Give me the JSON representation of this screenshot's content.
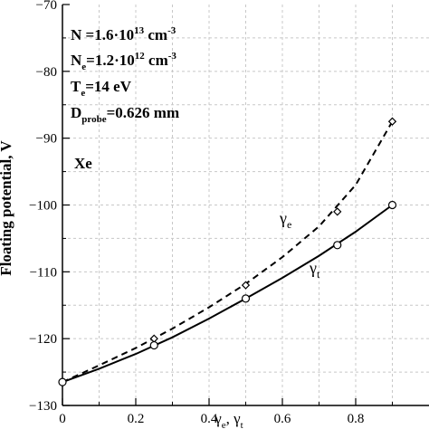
{
  "chart_data": {
    "type": "line",
    "xlabel": {
      "main": "γ",
      "sub1": "e",
      "sep": ", γ",
      "sub2": "t"
    },
    "ylabel": "Floating potential, V",
    "xlim": [
      0,
      1.0
    ],
    "ylim": [
      -130,
      -70
    ],
    "xticks": [
      0,
      0.2,
      0.4,
      0.6,
      0.8
    ],
    "xtick_labels": [
      "0",
      "0.2",
      "0.4",
      "0.6",
      "0.8"
    ],
    "yticks": [
      -130,
      -120,
      -110,
      -100,
      -90,
      -80,
      -70
    ],
    "ytick_labels": [
      "-130",
      "-120",
      "-110",
      "-100",
      "-90",
      "-80",
      "-70"
    ],
    "grid": true,
    "series": [
      {
        "label_main": "γ",
        "label_sub": "e",
        "style": "dashed",
        "marker": "diamond",
        "points": [
          [
            0,
            -126.5
          ],
          [
            0.25,
            -120.0
          ],
          [
            0.5,
            -112.0
          ],
          [
            0.75,
            -101.0
          ],
          [
            0.9,
            -87.5
          ]
        ],
        "curve": [
          [
            0,
            -126.5
          ],
          [
            0.1,
            -124.0
          ],
          [
            0.2,
            -121.4
          ],
          [
            0.3,
            -118.5
          ],
          [
            0.4,
            -115.3
          ],
          [
            0.5,
            -111.8
          ],
          [
            0.6,
            -107.8
          ],
          [
            0.7,
            -103.2
          ],
          [
            0.8,
            -97.0
          ],
          [
            0.9,
            -87.5
          ]
        ]
      },
      {
        "label_main": "γ",
        "label_sub": "t",
        "style": "solid",
        "marker": "circle",
        "points": [
          [
            0,
            -126.5
          ],
          [
            0.25,
            -121.0
          ],
          [
            0.5,
            -114.0
          ],
          [
            0.75,
            -106.0
          ],
          [
            0.9,
            -100.0
          ]
        ],
        "curve": [
          [
            0,
            -126.5
          ],
          [
            0.1,
            -124.5
          ],
          [
            0.2,
            -122.3
          ],
          [
            0.3,
            -119.8
          ],
          [
            0.4,
            -117.0
          ],
          [
            0.5,
            -114.0
          ],
          [
            0.6,
            -110.9
          ],
          [
            0.7,
            -107.6
          ],
          [
            0.8,
            -104.0
          ],
          [
            0.9,
            -100.0
          ]
        ]
      }
    ],
    "annotations": {
      "n": {
        "pre": "N =1.6·10",
        "sup": "13",
        "post": " cm",
        "sup2": "-3"
      },
      "ne": {
        "pre": "N",
        "sub": "e",
        "mid": "=1.2·10",
        "sup": "12",
        "post": " cm",
        "sup2": "-3"
      },
      "te": {
        "pre": "T",
        "sub": "e",
        "post": "=14 eV"
      },
      "dprobe": {
        "pre": "D",
        "sub": "probe",
        "post": "=0.626 mm"
      },
      "gas": "Xe"
    }
  }
}
